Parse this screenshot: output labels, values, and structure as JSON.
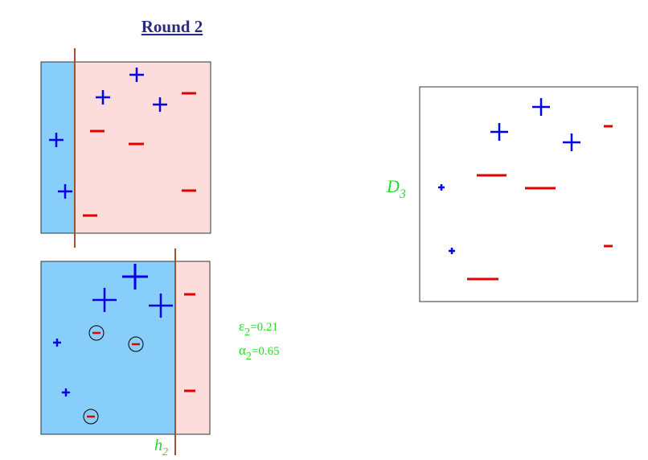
{
  "title": "Round 2",
  "colors": {
    "title": "#2b2b7d",
    "title_underline": "#e00000",
    "positive": "#0000e0",
    "negative": "#e00000",
    "region_blue": "#87cefa",
    "region_pink": "#fddcdc",
    "boundary": "#a0522d",
    "annotation": "#22dd22"
  },
  "panels": {
    "top": {
      "name": "weak-learner-h1"
    },
    "bottom": {
      "stump_label": {
        "base": "h",
        "sub": "2"
      },
      "error": {
        "symbol": "ε",
        "sub": "2",
        "value": "=0.21"
      },
      "alpha": {
        "symbol": "α",
        "sub": "2",
        "value": "=0.65"
      }
    },
    "right": {
      "dist_label": {
        "base": "D",
        "sub": "3"
      }
    }
  }
}
